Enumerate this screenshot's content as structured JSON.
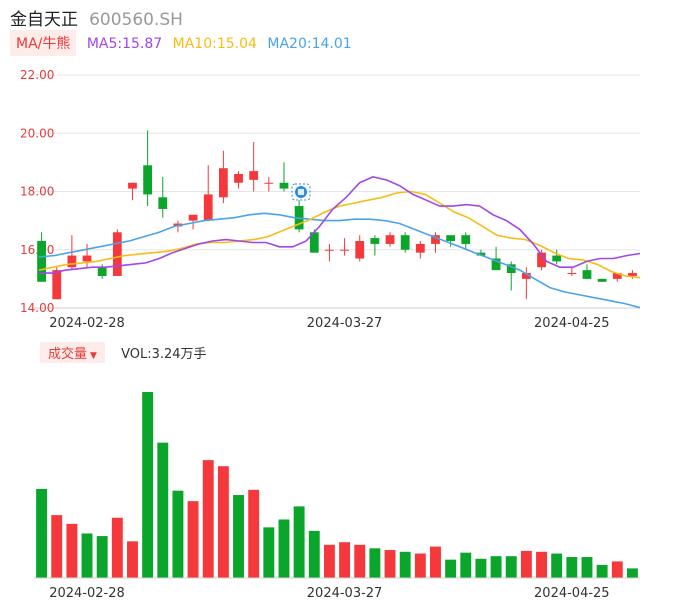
{
  "header": {
    "name": "金自天正",
    "code": "600560.SH"
  },
  "ma_legend": {
    "tag": "MA/牛熊",
    "ma5": "MA5:15.87",
    "ma10": "MA10:15.04",
    "ma20": "MA20:14.01"
  },
  "volume_legend": {
    "tag": "成交量",
    "arrow": "▼",
    "value": "VOL:3.24万手"
  },
  "colors": {
    "up": "#f5383b",
    "down": "#0aa52a",
    "ma5": "#a146e8",
    "ma10": "#f6bd16",
    "ma20": "#4ba3e8",
    "axis": "#e83a3a"
  },
  "chart_data": [
    {
      "type": "candlestick",
      "ylim": [
        14.0,
        22.0
      ],
      "yticks": [
        "22.00",
        "20.00",
        "18.00",
        "16.00",
        "14.00"
      ],
      "xticks": [
        "2024-02-28",
        "2024-03-27",
        "2024-04-25"
      ],
      "candles": [
        {
          "o": 16.3,
          "h": 16.6,
          "l": 14.9,
          "c": 14.9
        },
        {
          "o": 14.3,
          "h": 15.4,
          "l": 14.3,
          "c": 15.3
        },
        {
          "o": 15.4,
          "h": 16.5,
          "l": 15.3,
          "c": 15.8
        },
        {
          "o": 15.6,
          "h": 16.2,
          "l": 15.4,
          "c": 15.8
        },
        {
          "o": 15.4,
          "h": 15.5,
          "l": 15.0,
          "c": 15.1
        },
        {
          "o": 15.1,
          "h": 16.7,
          "l": 15.1,
          "c": 16.6
        },
        {
          "o": 18.1,
          "h": 18.3,
          "l": 17.7,
          "c": 18.3
        },
        {
          "o": 18.9,
          "h": 20.1,
          "l": 17.5,
          "c": 17.9
        },
        {
          "o": 17.8,
          "h": 18.5,
          "l": 17.1,
          "c": 17.4
        },
        {
          "o": 16.8,
          "h": 17.0,
          "l": 16.6,
          "c": 16.9
        },
        {
          "o": 17.0,
          "h": 17.2,
          "l": 16.7,
          "c": 17.2
        },
        {
          "o": 17.0,
          "h": 18.9,
          "l": 17.0,
          "c": 17.9
        },
        {
          "o": 17.8,
          "h": 19.4,
          "l": 17.6,
          "c": 18.8
        },
        {
          "o": 18.3,
          "h": 18.7,
          "l": 18.1,
          "c": 18.6
        },
        {
          "o": 18.4,
          "h": 19.7,
          "l": 18.0,
          "c": 18.7
        },
        {
          "o": 18.3,
          "h": 18.5,
          "l": 18.0,
          "c": 18.3
        },
        {
          "o": 18.3,
          "h": 19.0,
          "l": 18.0,
          "c": 18.1
        },
        {
          "o": 17.5,
          "h": 17.7,
          "l": 16.6,
          "c": 16.7
        },
        {
          "o": 16.6,
          "h": 16.7,
          "l": 15.9,
          "c": 15.9
        },
        {
          "o": 16.0,
          "h": 16.2,
          "l": 15.6,
          "c": 16.0
        },
        {
          "o": 16.0,
          "h": 16.4,
          "l": 15.8,
          "c": 16.0
        },
        {
          "o": 15.7,
          "h": 16.5,
          "l": 15.6,
          "c": 16.3
        },
        {
          "o": 16.4,
          "h": 16.5,
          "l": 15.8,
          "c": 16.2
        },
        {
          "o": 16.2,
          "h": 16.6,
          "l": 16.1,
          "c": 16.5
        },
        {
          "o": 16.5,
          "h": 16.6,
          "l": 15.9,
          "c": 16.0
        },
        {
          "o": 15.9,
          "h": 16.3,
          "l": 15.7,
          "c": 16.2
        },
        {
          "o": 16.2,
          "h": 16.6,
          "l": 15.9,
          "c": 16.5
        },
        {
          "o": 16.5,
          "h": 16.5,
          "l": 16.1,
          "c": 16.3
        },
        {
          "o": 16.5,
          "h": 16.6,
          "l": 16.0,
          "c": 16.2
        },
        {
          "o": 15.9,
          "h": 16.0,
          "l": 15.8,
          "c": 15.8
        },
        {
          "o": 15.7,
          "h": 16.1,
          "l": 15.3,
          "c": 15.3
        },
        {
          "o": 15.5,
          "h": 15.6,
          "l": 14.6,
          "c": 15.2
        },
        {
          "o": 15.0,
          "h": 15.4,
          "l": 14.3,
          "c": 15.2
        },
        {
          "o": 15.4,
          "h": 16.0,
          "l": 15.3,
          "c": 15.9
        },
        {
          "o": 15.8,
          "h": 16.0,
          "l": 15.5,
          "c": 15.6
        },
        {
          "o": 15.2,
          "h": 15.4,
          "l": 15.1,
          "c": 15.2
        },
        {
          "o": 15.3,
          "h": 15.5,
          "l": 15.0,
          "c": 15.0
        },
        {
          "o": 15.0,
          "h": 15.0,
          "l": 14.9,
          "c": 14.9
        },
        {
          "o": 15.0,
          "h": 15.2,
          "l": 14.9,
          "c": 15.2
        },
        {
          "o": 15.1,
          "h": 15.3,
          "l": 15.0,
          "c": 15.2
        }
      ],
      "ma5": [
        15.2,
        15.2,
        15.3,
        15.35,
        15.4,
        15.4,
        15.45,
        15.5,
        15.55,
        15.7,
        15.9,
        16.05,
        16.2,
        16.3,
        16.35,
        16.3,
        16.25,
        16.25,
        16.1,
        16.1,
        16.3,
        16.8,
        17.4,
        17.8,
        18.3,
        18.5,
        18.4,
        18.2,
        17.9,
        17.7,
        17.5,
        17.5,
        17.55,
        17.5,
        17.2,
        17.0,
        16.7,
        16.2,
        15.6,
        15.4,
        15.4,
        15.6,
        15.7,
        15.7,
        15.8,
        15.87
      ],
      "ma10": [
        15.3,
        15.4,
        15.5,
        15.55,
        15.6,
        15.7,
        15.8,
        15.85,
        15.9,
        15.95,
        16.05,
        16.2,
        16.25,
        16.25,
        16.3,
        16.35,
        16.45,
        16.65,
        16.85,
        17.05,
        17.3,
        17.5,
        17.6,
        17.7,
        17.8,
        17.95,
        18.0,
        17.9,
        17.6,
        17.3,
        17.1,
        16.8,
        16.5,
        16.4,
        16.35,
        16.15,
        15.9,
        15.7,
        15.65,
        15.5,
        15.25,
        15.1,
        15.04
      ],
      "ma20": [
        15.75,
        15.8,
        15.9,
        16.0,
        16.1,
        16.2,
        16.3,
        16.45,
        16.6,
        16.8,
        16.9,
        17.0,
        17.05,
        17.1,
        17.2,
        17.25,
        17.2,
        17.1,
        17.05,
        17.0,
        17.0,
        17.05,
        17.05,
        17.0,
        16.9,
        16.7,
        16.5,
        16.3,
        16.1,
        15.9,
        15.7,
        15.5,
        15.3,
        15.0,
        14.7,
        14.55,
        14.45,
        14.35,
        14.25,
        14.15,
        14.01
      ]
    },
    {
      "type": "bar",
      "title": "成交量",
      "values": [
        102,
        72,
        62,
        51,
        48,
        69,
        42,
        213,
        155,
        100,
        88,
        135,
        128,
        95,
        101,
        58,
        67,
        82,
        54,
        38,
        41,
        38,
        34,
        32,
        30,
        28,
        36,
        21,
        29,
        22,
        25,
        25,
        31,
        30,
        28,
        24,
        24,
        15,
        19,
        11
      ],
      "directions": [
        "d",
        "u",
        "u",
        "d",
        "d",
        "u",
        "u",
        "d",
        "d",
        "d",
        "u",
        "u",
        "u",
        "d",
        "u",
        "d",
        "d",
        "d",
        "d",
        "u",
        "u",
        "u",
        "d",
        "u",
        "d",
        "u",
        "u",
        "d",
        "d",
        "d",
        "d",
        "d",
        "u",
        "u",
        "d",
        "d",
        "d",
        "d",
        "u",
        "d"
      ]
    }
  ]
}
